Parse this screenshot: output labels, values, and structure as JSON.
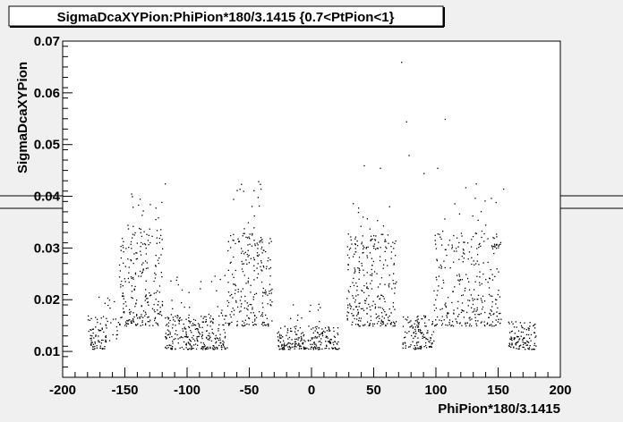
{
  "chart_data": {
    "type": "scatter",
    "title": "SigmaDcaXYPion:PhiPion*180/3.1415 {0.7<PtPion<1}",
    "xlabel": "PhiPion*180/3.1415",
    "ylabel": "SigmaDcaXYPion",
    "xlim": [
      -200,
      200
    ],
    "ylim": [
      0.005,
      0.07
    ],
    "x_ticks": [
      -200,
      -150,
      -100,
      -50,
      0,
      50,
      100,
      150,
      200
    ],
    "y_ticks": [
      0.01,
      0.02,
      0.03,
      0.04,
      0.05,
      0.06,
      0.07
    ],
    "y_tick_labels": [
      "0.01",
      "0.02",
      "0.03",
      "0.04",
      "0.05",
      "0.06",
      "0.07"
    ],
    "grid": false,
    "legend": "none",
    "marker_color": "#000000",
    "clusters": [
      {
        "x_min": -180,
        "x_max": -165,
        "y_min": 0.0105,
        "y_max": 0.017,
        "n": 70
      },
      {
        "x_min": -172,
        "x_max": -155,
        "y_min": 0.012,
        "y_max": 0.021,
        "n": 25
      },
      {
        "x_min": -155,
        "x_max": -120,
        "y_min": 0.015,
        "y_max": 0.034,
        "n": 230
      },
      {
        "x_min": -148,
        "x_max": -120,
        "y_min": 0.03,
        "y_max": 0.042,
        "n": 20
      },
      {
        "x_min": -118,
        "x_max": -68,
        "y_min": 0.0105,
        "y_max": 0.017,
        "n": 260
      },
      {
        "x_min": -115,
        "x_max": -70,
        "y_min": 0.016,
        "y_max": 0.025,
        "n": 35
      },
      {
        "x_min": -68,
        "x_max": -32,
        "y_min": 0.015,
        "y_max": 0.033,
        "n": 220
      },
      {
        "x_min": -62,
        "x_max": -38,
        "y_min": 0.03,
        "y_max": 0.043,
        "n": 25
      },
      {
        "x_min": -28,
        "x_max": 22,
        "y_min": 0.0105,
        "y_max": 0.015,
        "n": 220
      },
      {
        "x_min": -20,
        "x_max": 15,
        "y_min": 0.014,
        "y_max": 0.02,
        "n": 20
      },
      {
        "x_min": 28,
        "x_max": 68,
        "y_min": 0.015,
        "y_max": 0.033,
        "n": 260
      },
      {
        "x_min": 30,
        "x_max": 65,
        "y_min": 0.03,
        "y_max": 0.042,
        "n": 30
      },
      {
        "x_min": 72,
        "x_max": 98,
        "y_min": 0.0105,
        "y_max": 0.017,
        "n": 130
      },
      {
        "x_min": 98,
        "x_max": 152,
        "y_min": 0.015,
        "y_max": 0.033,
        "n": 280
      },
      {
        "x_min": 100,
        "x_max": 150,
        "y_min": 0.03,
        "y_max": 0.042,
        "n": 30
      },
      {
        "x_min": 158,
        "x_max": 180,
        "y_min": 0.0105,
        "y_max": 0.016,
        "n": 110
      }
    ],
    "outliers": [
      {
        "x": 72,
        "y": 0.066
      },
      {
        "x": 76,
        "y": 0.0545
      },
      {
        "x": 78,
        "y": 0.048
      },
      {
        "x": 107,
        "y": 0.055
      },
      {
        "x": -118,
        "y": 0.0425
      },
      {
        "x": -41,
        "y": 0.0415
      },
      {
        "x": -63,
        "y": 0.0395
      },
      {
        "x": 42,
        "y": 0.046
      },
      {
        "x": 55,
        "y": 0.0455
      },
      {
        "x": 101,
        "y": 0.0455
      },
      {
        "x": 154,
        "y": 0.0415
      },
      {
        "x": 132,
        "y": 0.0425
      },
      {
        "x": -148,
        "y": 0.0345
      },
      {
        "x": -130,
        "y": 0.0385
      },
      {
        "x": 90,
        "y": 0.0445
      }
    ]
  }
}
